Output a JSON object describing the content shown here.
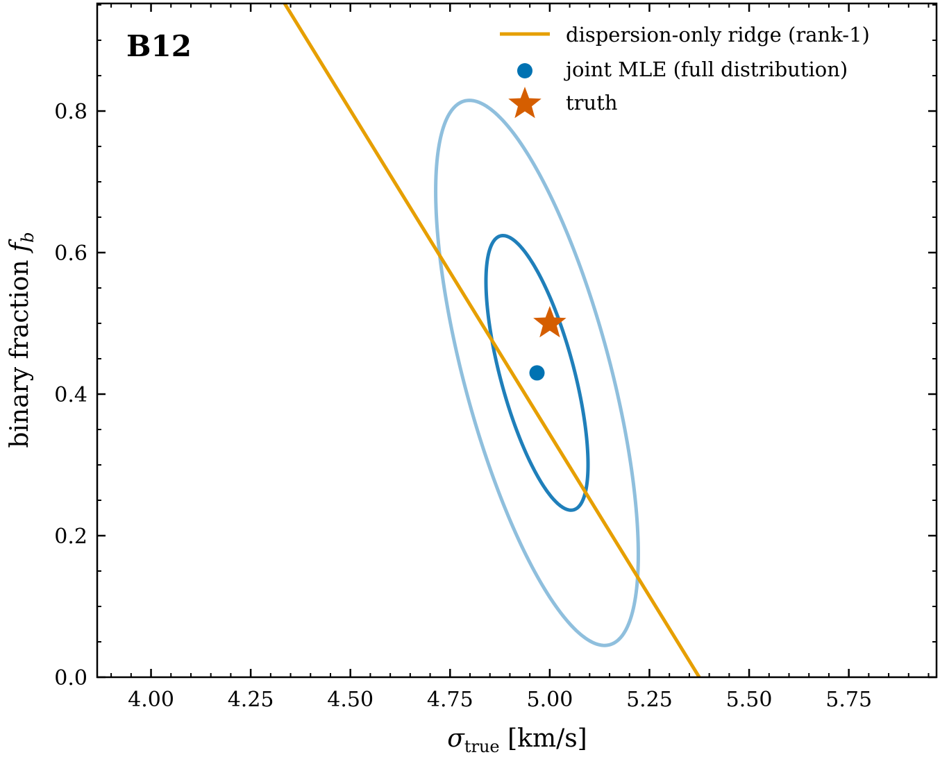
{
  "chart_data": {
    "type": "scatter",
    "title": "",
    "panel_label": "B12",
    "xlabel": {
      "symbol": "σ",
      "subscript": "true",
      "unit": "[km/s]"
    },
    "ylabel": {
      "text": "binary fraction",
      "symbol": "f",
      "subscript": "b"
    },
    "xlim": [
      3.865,
      5.97
    ],
    "ylim": [
      0.0,
      0.952
    ],
    "xticks": [
      4.0,
      4.25,
      4.5,
      4.75,
      5.0,
      5.25,
      5.5,
      5.75
    ],
    "xtick_labels": [
      "4.00",
      "4.25",
      "4.50",
      "4.75",
      "5.00",
      "5.25",
      "5.50",
      "5.75"
    ],
    "yticks": [
      0.0,
      0.2,
      0.4,
      0.6,
      0.8
    ],
    "ytick_labels": [
      "0.0",
      "0.2",
      "0.4",
      "0.6",
      "0.8"
    ],
    "grid": false,
    "legend_position": "top-right",
    "series": [
      {
        "name": "dispersion-only ridge (rank-1)",
        "kind": "line",
        "color": "#E69F00",
        "x": [
          4.335,
          5.375
        ],
        "y": [
          0.952,
          0.0
        ]
      },
      {
        "name": "joint MLE (full distribution)",
        "kind": "point",
        "color": "#0072B2",
        "x": [
          4.968
        ],
        "y": [
          0.43
        ]
      },
      {
        "name": "truth",
        "kind": "star",
        "color": "#D55E00",
        "x": [
          5.0
        ],
        "y": [
          0.5
        ]
      }
    ],
    "contours": [
      {
        "level": "inner",
        "color": "#1F7FBA",
        "center": [
          4.968,
          0.43
        ],
        "ranges": {
          "x": [
            4.84,
            5.095
          ],
          "y": [
            0.24,
            0.622
          ]
        },
        "sd": [
          0.064,
          0.097
        ],
        "corr": -0.667,
        "scale": 2.0
      },
      {
        "level": "outer",
        "color": "#8FBFDD",
        "center": [
          4.968,
          0.43
        ],
        "ranges": {
          "x": [
            4.715,
            5.22
          ],
          "y": [
            0.045,
            0.815
          ]
        },
        "sd": [
          0.064,
          0.097
        ],
        "corr": -0.667,
        "scale": 3.97
      }
    ]
  }
}
